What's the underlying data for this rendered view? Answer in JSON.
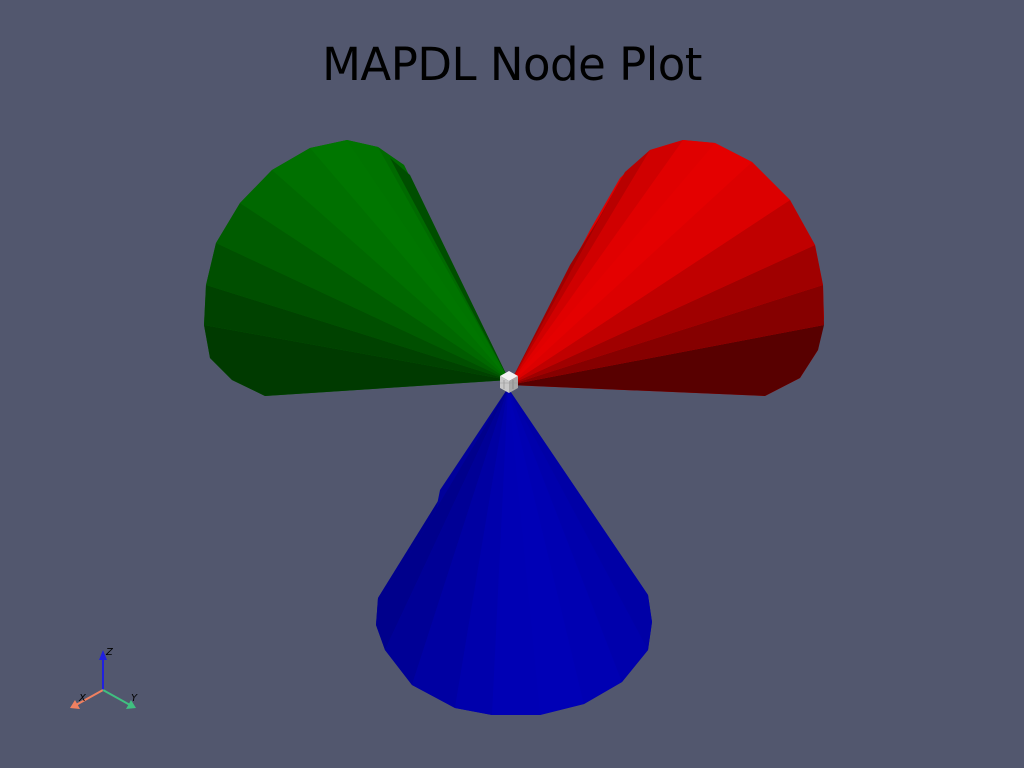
{
  "title": "MAPDL Node Plot",
  "background_color": "#52576e",
  "cones": [
    {
      "name": "green-cone",
      "color": "#007400"
    },
    {
      "name": "red-cone",
      "color": "#e00000"
    },
    {
      "name": "blue-cone",
      "color": "#0000b4"
    }
  ],
  "axes_widget": {
    "x_label": "X",
    "y_label": "Y",
    "z_label": "Z",
    "x_color": "#f08060",
    "y_color": "#40c080",
    "z_color": "#2020e0"
  }
}
